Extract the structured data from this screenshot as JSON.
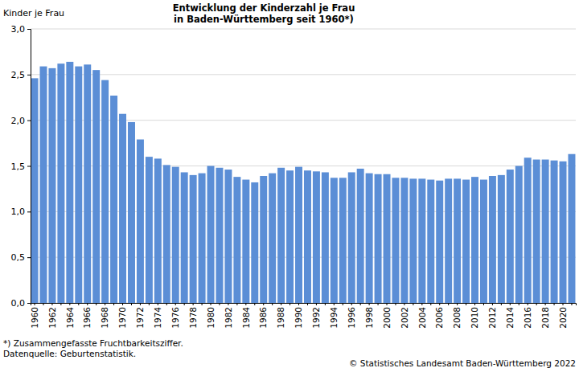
{
  "chart_data": {
    "type": "bar",
    "title": "Entwicklung der Kinderzahl je Frau",
    "subtitle": "in Baden-Württemberg seit 1960*)",
    "y_label": "Kinder je Frau",
    "annotations": [
      "*) Zusammengefasste Fruchtbarkeitsziffer.",
      "Datenquelle: Geburtenstatistik.",
      "© Statistisches Landesamt Baden-Württemberg 2022"
    ],
    "categories": [
      "1960",
      null,
      "1962",
      null,
      "1964",
      null,
      "1966",
      null,
      "1968",
      null,
      "1970",
      null,
      "1972",
      null,
      "1974",
      null,
      "1976",
      null,
      "1978",
      null,
      "1980",
      null,
      "1982",
      null,
      "1984",
      null,
      "1986",
      null,
      "1988",
      null,
      "1990",
      null,
      "1992",
      null,
      "1994",
      null,
      "1996",
      null,
      "1998",
      null,
      "2000",
      null,
      "2002",
      null,
      "2004",
      null,
      "2006",
      null,
      "2008",
      null,
      "2010",
      null,
      "2012",
      null,
      "2014",
      null,
      "2016",
      null,
      "2018",
      null,
      "2020",
      null
    ],
    "values": [
      2.46,
      2.59,
      2.57,
      2.62,
      2.64,
      2.59,
      2.61,
      2.55,
      2.44,
      2.27,
      2.07,
      1.98,
      1.79,
      1.6,
      1.58,
      1.51,
      1.49,
      1.43,
      1.4,
      1.42,
      1.5,
      1.48,
      1.46,
      1.38,
      1.35,
      1.32,
      1.39,
      1.42,
      1.48,
      1.45,
      1.49,
      1.45,
      1.44,
      1.43,
      1.37,
      1.37,
      1.43,
      1.47,
      1.42,
      1.41,
      1.41,
      1.37,
      1.37,
      1.36,
      1.36,
      1.35,
      1.34,
      1.36,
      1.36,
      1.35,
      1.38,
      1.35,
      1.39,
      1.4,
      1.46,
      1.5,
      1.59,
      1.57,
      1.57,
      1.56,
      1.55,
      1.63
    ],
    "color": "#5b8ed6",
    "ylim": [
      0,
      3
    ],
    "yticks": [
      {
        "value": 0,
        "label": "0,0"
      },
      {
        "value": 0.5,
        "label": "0,5"
      },
      {
        "value": 1,
        "label": "1,0"
      },
      {
        "value": 1.5,
        "label": "1,5"
      },
      {
        "value": 2,
        "label": "2,0"
      },
      {
        "value": 2.5,
        "label": "2,5"
      },
      {
        "value": 3,
        "label": "3,0"
      }
    ],
    "grid": true
  }
}
